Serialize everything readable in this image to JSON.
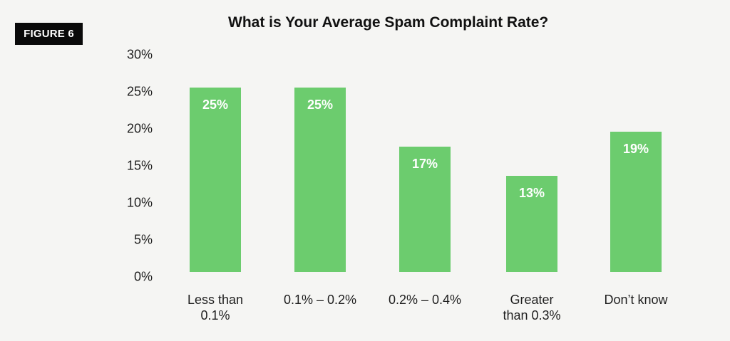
{
  "figure_label": "FIGURE 6",
  "chart_data": {
    "type": "bar",
    "title": "What is Your Average Spam Complaint Rate?",
    "xlabel": "",
    "ylabel": "",
    "ylim": [
      0,
      30
    ],
    "y_ticks": [
      "30%",
      "25%",
      "20%",
      "15%",
      "10%",
      "5%",
      "0%"
    ],
    "categories": [
      "Less than\n0.1%",
      "0.1% – 0.2%",
      "0.2% – 0.4%",
      "Greater\nthan 0.3%",
      "Don’t know"
    ],
    "values": [
      25,
      25,
      17,
      13,
      19
    ],
    "data_labels": [
      "25%",
      "25%",
      "17%",
      "13%",
      "19%"
    ],
    "grid": false,
    "legend": null,
    "bar_color": "#6ccc6e"
  }
}
